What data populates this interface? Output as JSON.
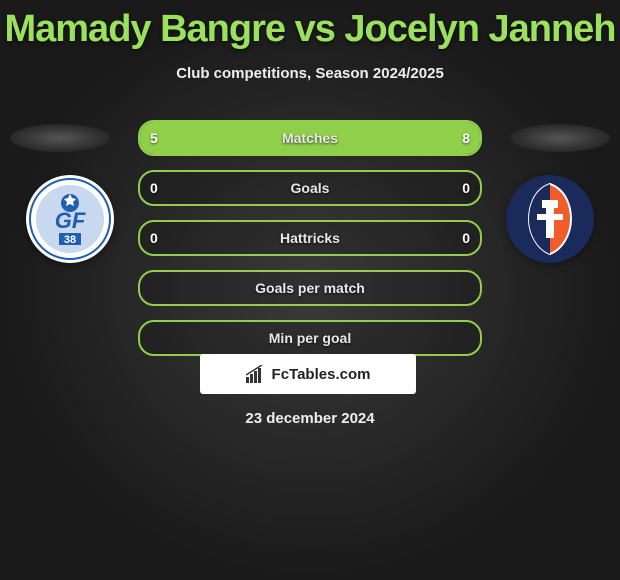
{
  "title": "Mamady Bangre vs Jocelyn Janneh",
  "subtitle": "Club competitions, Season 2024/2025",
  "date": "23 december 2024",
  "watermark": "FcTables.com",
  "left_logo": {
    "bg": "#ffffff",
    "accent1": "#1e5fb0",
    "accent2": "#c8d8ef",
    "text": "GF",
    "sub": "38"
  },
  "right_logo": {
    "bg": "#1a2a5a",
    "accent1": "#f25c2a",
    "accent2": "#ffffff"
  },
  "bars": [
    {
      "label": "Matches",
      "left": "5",
      "right": "8",
      "left_pct": 38,
      "right_pct": 62
    },
    {
      "label": "Goals",
      "left": "0",
      "right": "0",
      "left_pct": 0,
      "right_pct": 0
    },
    {
      "label": "Hattricks",
      "left": "0",
      "right": "0",
      "left_pct": 0,
      "right_pct": 0
    },
    {
      "label": "Goals per match",
      "left": "",
      "right": "",
      "left_pct": 0,
      "right_pct": 0
    },
    {
      "label": "Min per goal",
      "left": "",
      "right": "",
      "left_pct": 0,
      "right_pct": 0
    }
  ],
  "colors": {
    "bar_border": "#8fcf4a",
    "bar_fill": "#8fcf4a",
    "title": "#9be15d"
  }
}
